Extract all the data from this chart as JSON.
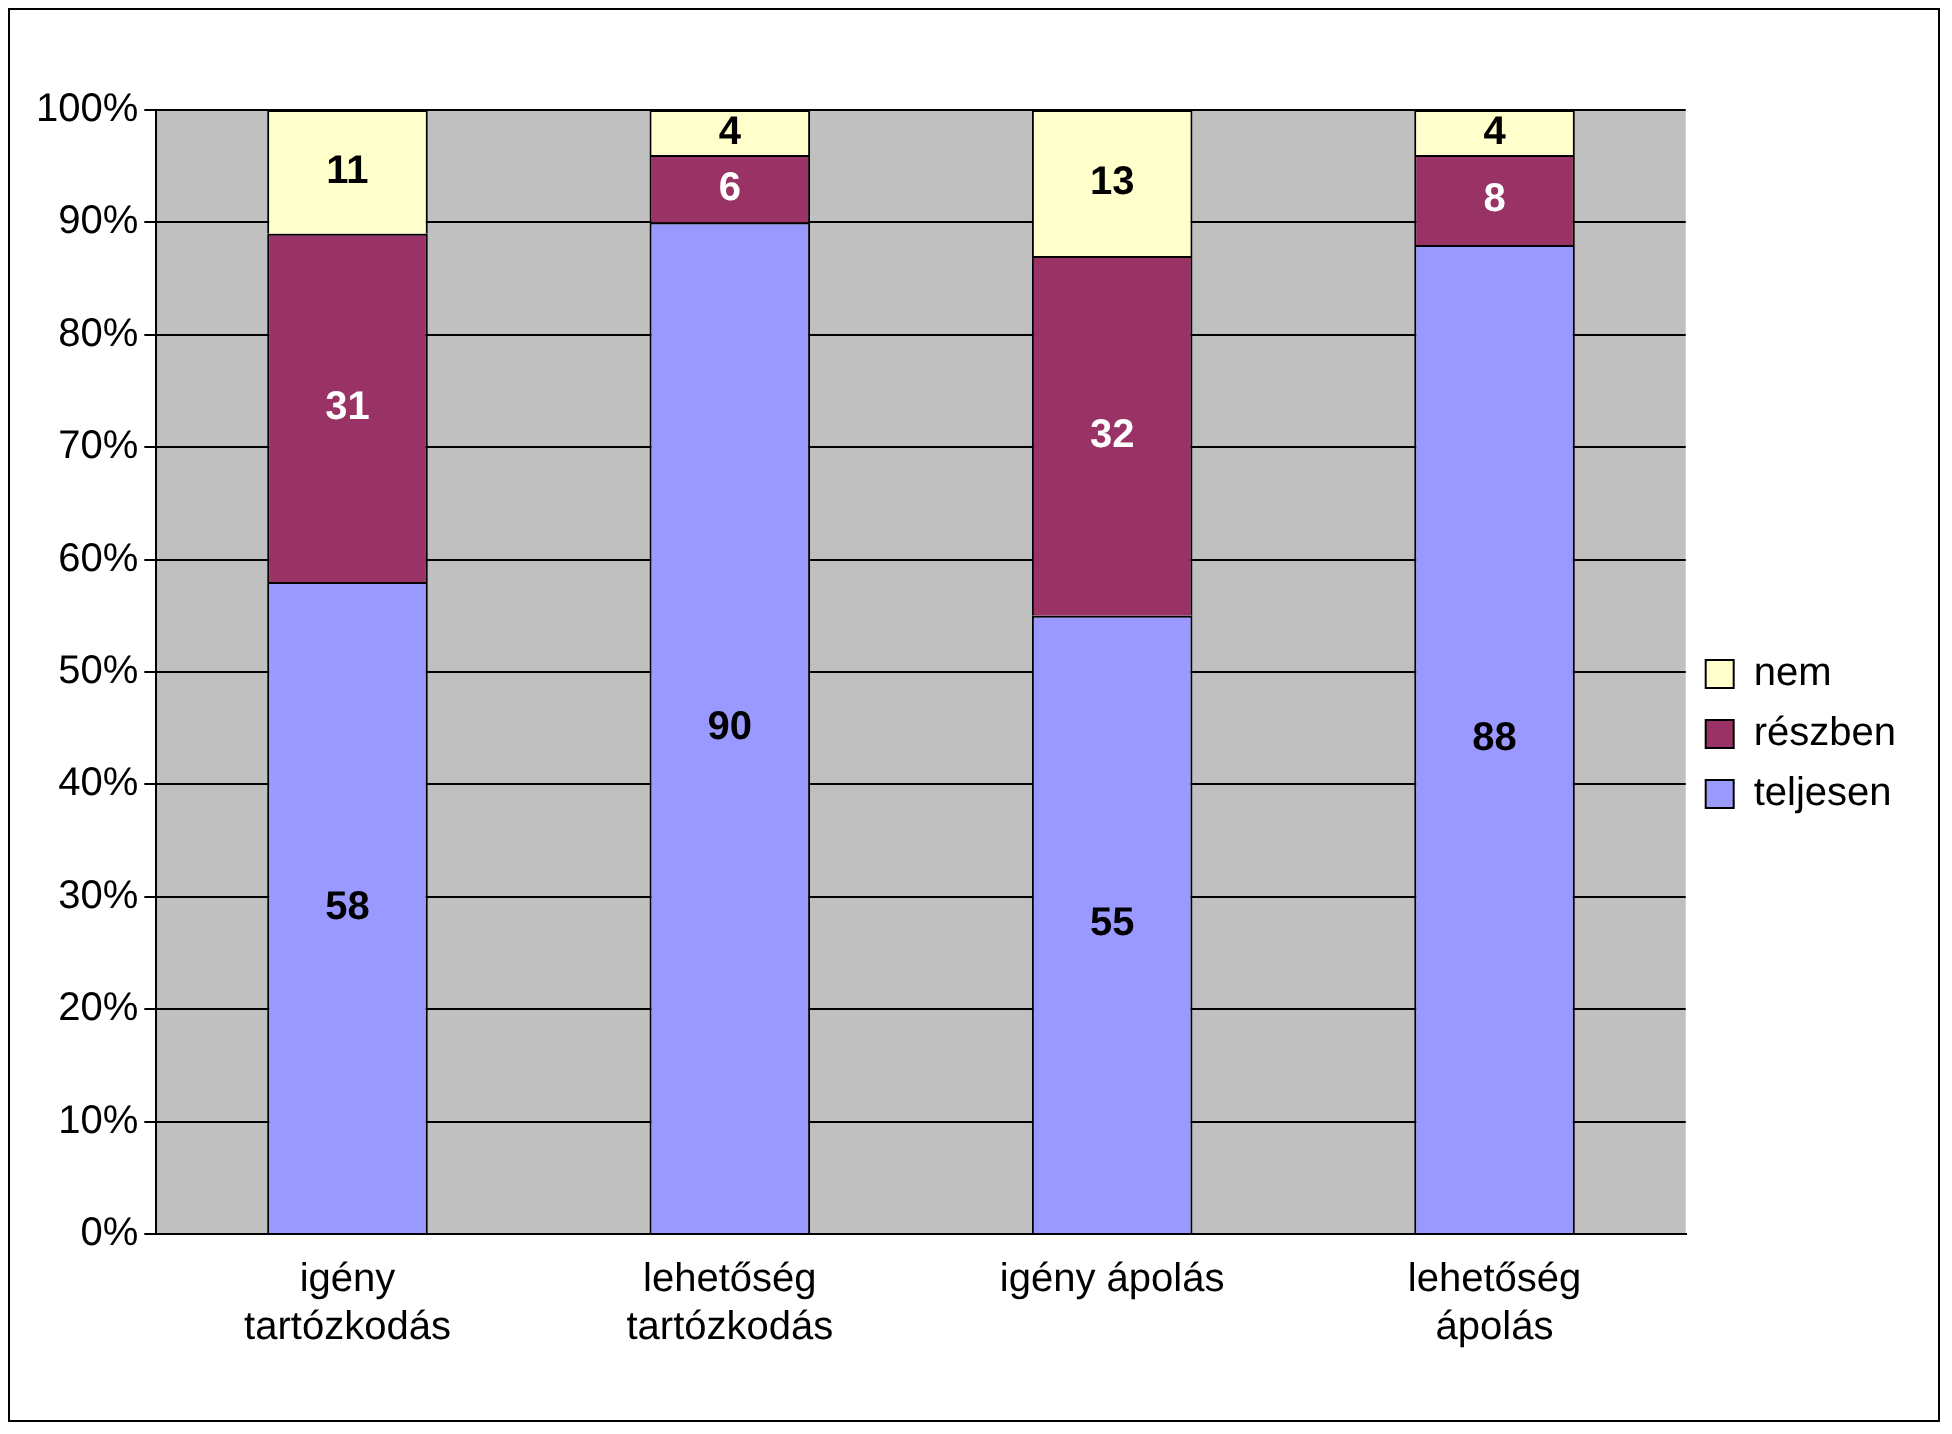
{
  "chart_data": {
    "type": "bar",
    "stacked": true,
    "categories": [
      "igény tartózkodás",
      "lehetőség tartózkodás",
      "igény ápolás",
      "lehetőség ápolás"
    ],
    "series": [
      {
        "name": "teljesen",
        "color": "#9999ff",
        "values": [
          58,
          90,
          55,
          88
        ]
      },
      {
        "name": "részben",
        "color": "#993366",
        "values": [
          31,
          6,
          32,
          8
        ]
      },
      {
        "name": "nem",
        "color": "#ffffcc",
        "values": [
          11,
          4,
          13,
          4
        ]
      }
    ],
    "ylim": [
      0,
      100
    ],
    "yticks": [
      {
        "value": 0,
        "label": "0%"
      },
      {
        "value": 10,
        "label": "10%"
      },
      {
        "value": 20,
        "label": "20%"
      },
      {
        "value": 30,
        "label": "30%"
      },
      {
        "value": 40,
        "label": "40%"
      },
      {
        "value": 50,
        "label": "50%"
      },
      {
        "value": 60,
        "label": "60%"
      },
      {
        "value": 70,
        "label": "70%"
      },
      {
        "value": 80,
        "label": "80%"
      },
      {
        "value": 90,
        "label": "90%"
      },
      {
        "value": 100,
        "label": "100%"
      }
    ],
    "grid": "y",
    "legend": "right",
    "data_labels": true
  }
}
